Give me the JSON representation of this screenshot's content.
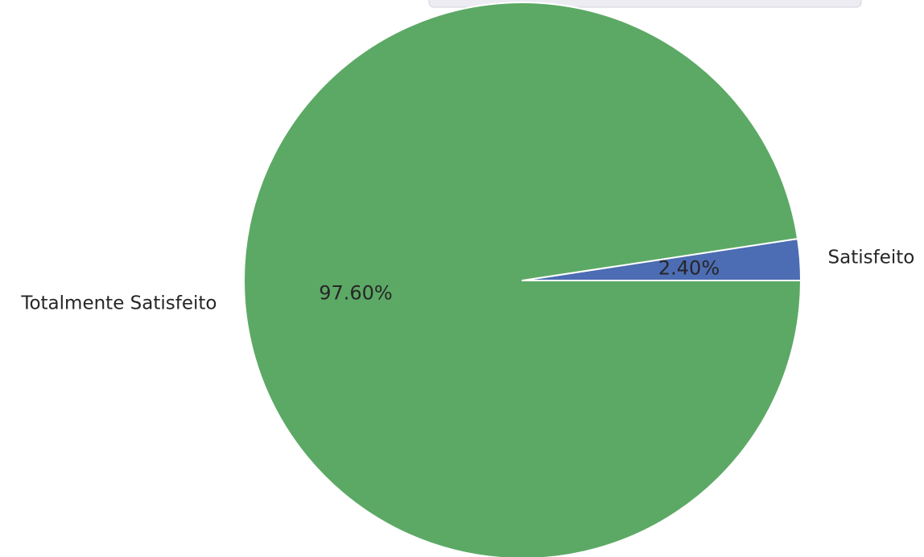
{
  "chart_data": {
    "type": "pie",
    "categories": [
      "Satisfeito",
      "Totalmente Satisfeito"
    ],
    "values": [
      2.4,
      97.6
    ],
    "percent_labels": [
      "2.40%",
      "97.60%"
    ],
    "colors": [
      "#4c6cb3",
      "#5ca965"
    ],
    "start_angle_deg": 0,
    "direction": "counterclockwise",
    "legend": "top (partially visible)"
  }
}
